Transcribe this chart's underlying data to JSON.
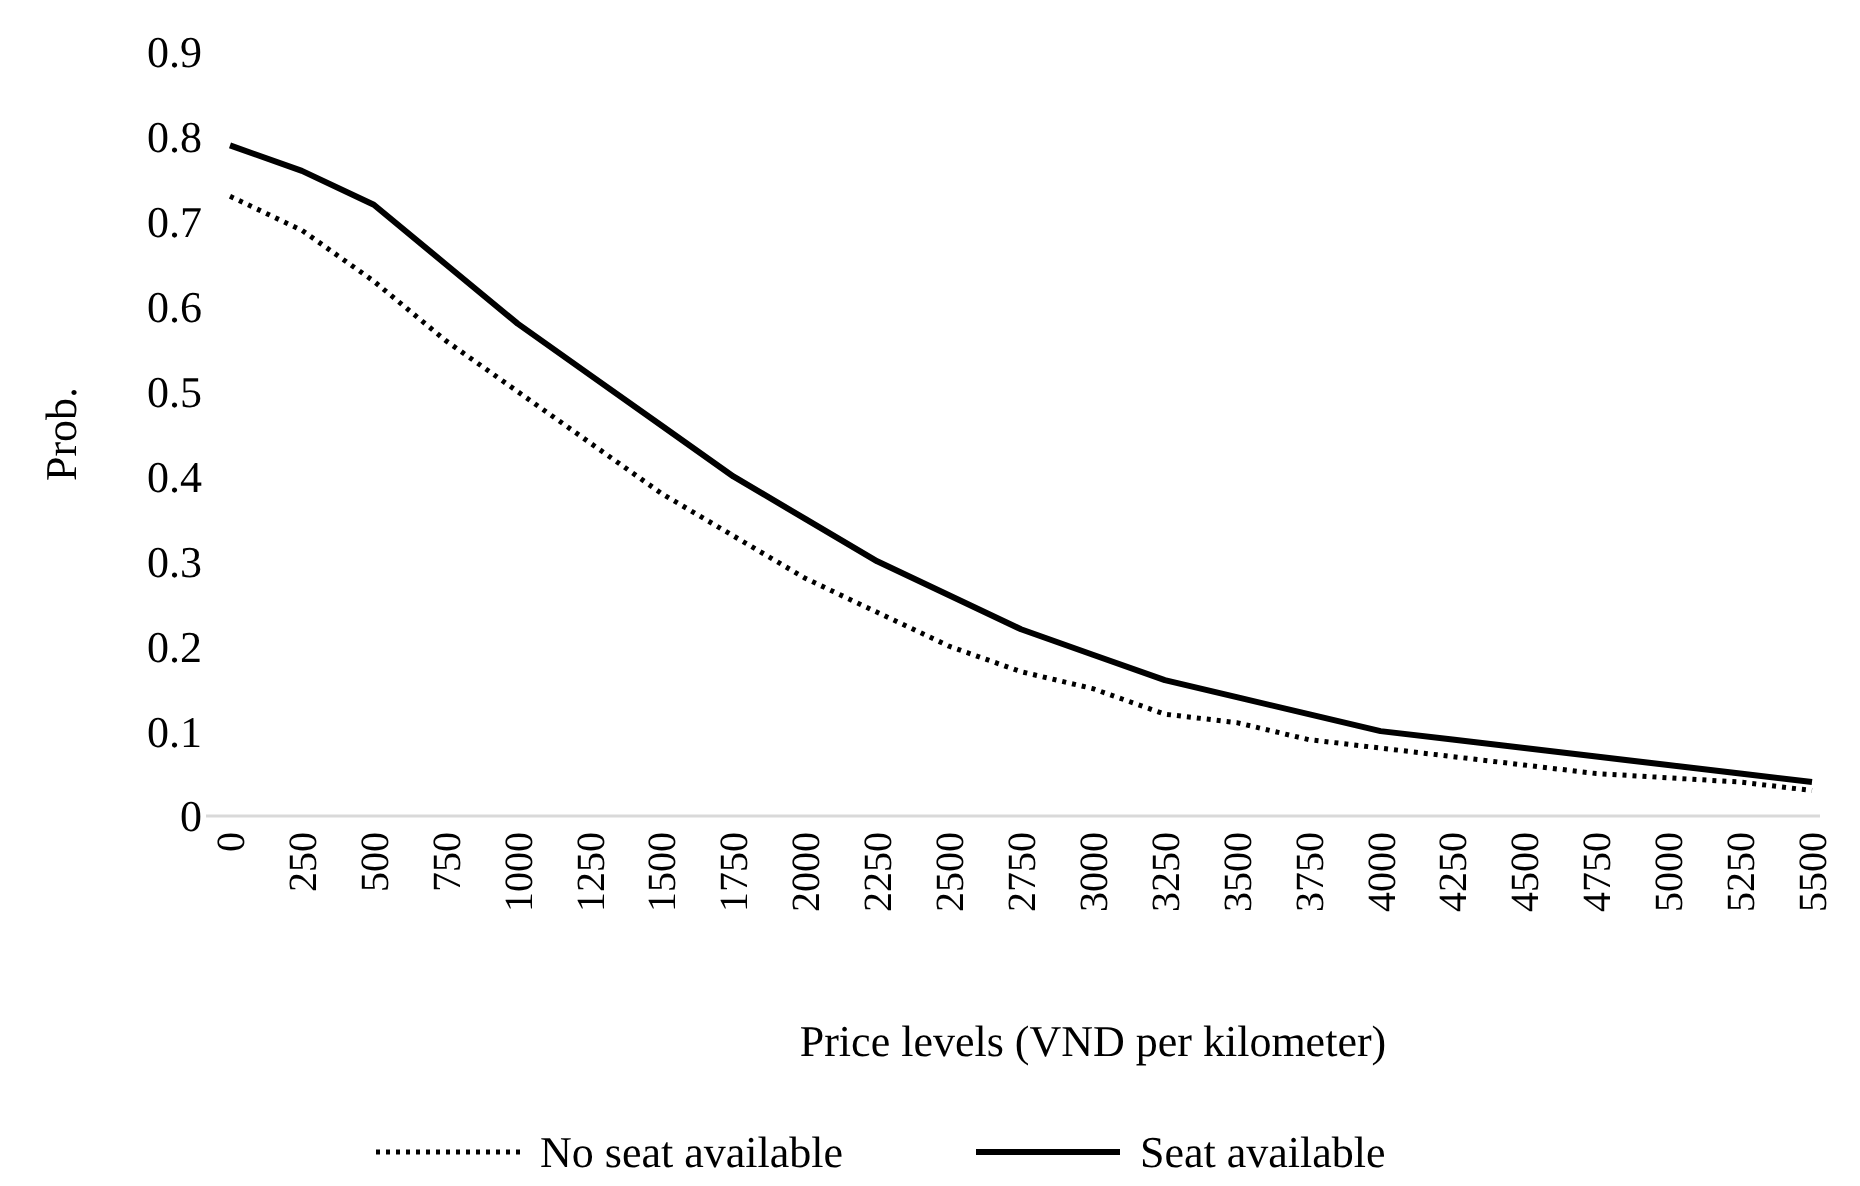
{
  "chart_data": {
    "type": "line",
    "xlabel": "Price levels (VND per kilometer)",
    "ylabel": "Prob.",
    "categories": [
      "0",
      "250",
      "500",
      "750",
      "1000",
      "1250",
      "1500",
      "1750",
      "2000",
      "2250",
      "2500",
      "2750",
      "3000",
      "3250",
      "3500",
      "3750",
      "4000",
      "4250",
      "4500",
      "4750",
      "5000",
      "5250",
      "5500"
    ],
    "ylim": [
      0,
      0.9
    ],
    "yticks": [
      0,
      0.1,
      0.2,
      0.3,
      0.4,
      0.5,
      0.6,
      0.7,
      0.8,
      0.9
    ],
    "grid": false,
    "legend": "bottom",
    "marker": "none",
    "series": [
      {
        "name": "No seat available",
        "color": "#000000",
        "line_style": "dotted",
        "values": [
          0.73,
          0.69,
          0.63,
          0.56,
          0.5,
          0.44,
          0.38,
          0.33,
          0.28,
          0.24,
          0.2,
          0.17,
          0.15,
          0.12,
          0.11,
          0.09,
          0.08,
          0.07,
          0.06,
          0.05,
          0.045,
          0.04,
          0.03
        ]
      },
      {
        "name": "Seat available",
        "color": "#000000",
        "line_style": "solid",
        "values": [
          0.79,
          0.76,
          0.72,
          0.65,
          0.58,
          0.52,
          0.46,
          0.4,
          0.35,
          0.3,
          0.26,
          0.22,
          0.19,
          0.16,
          0.14,
          0.12,
          0.1,
          0.09,
          0.08,
          0.07,
          0.06,
          0.05,
          0.04
        ]
      }
    ]
  }
}
